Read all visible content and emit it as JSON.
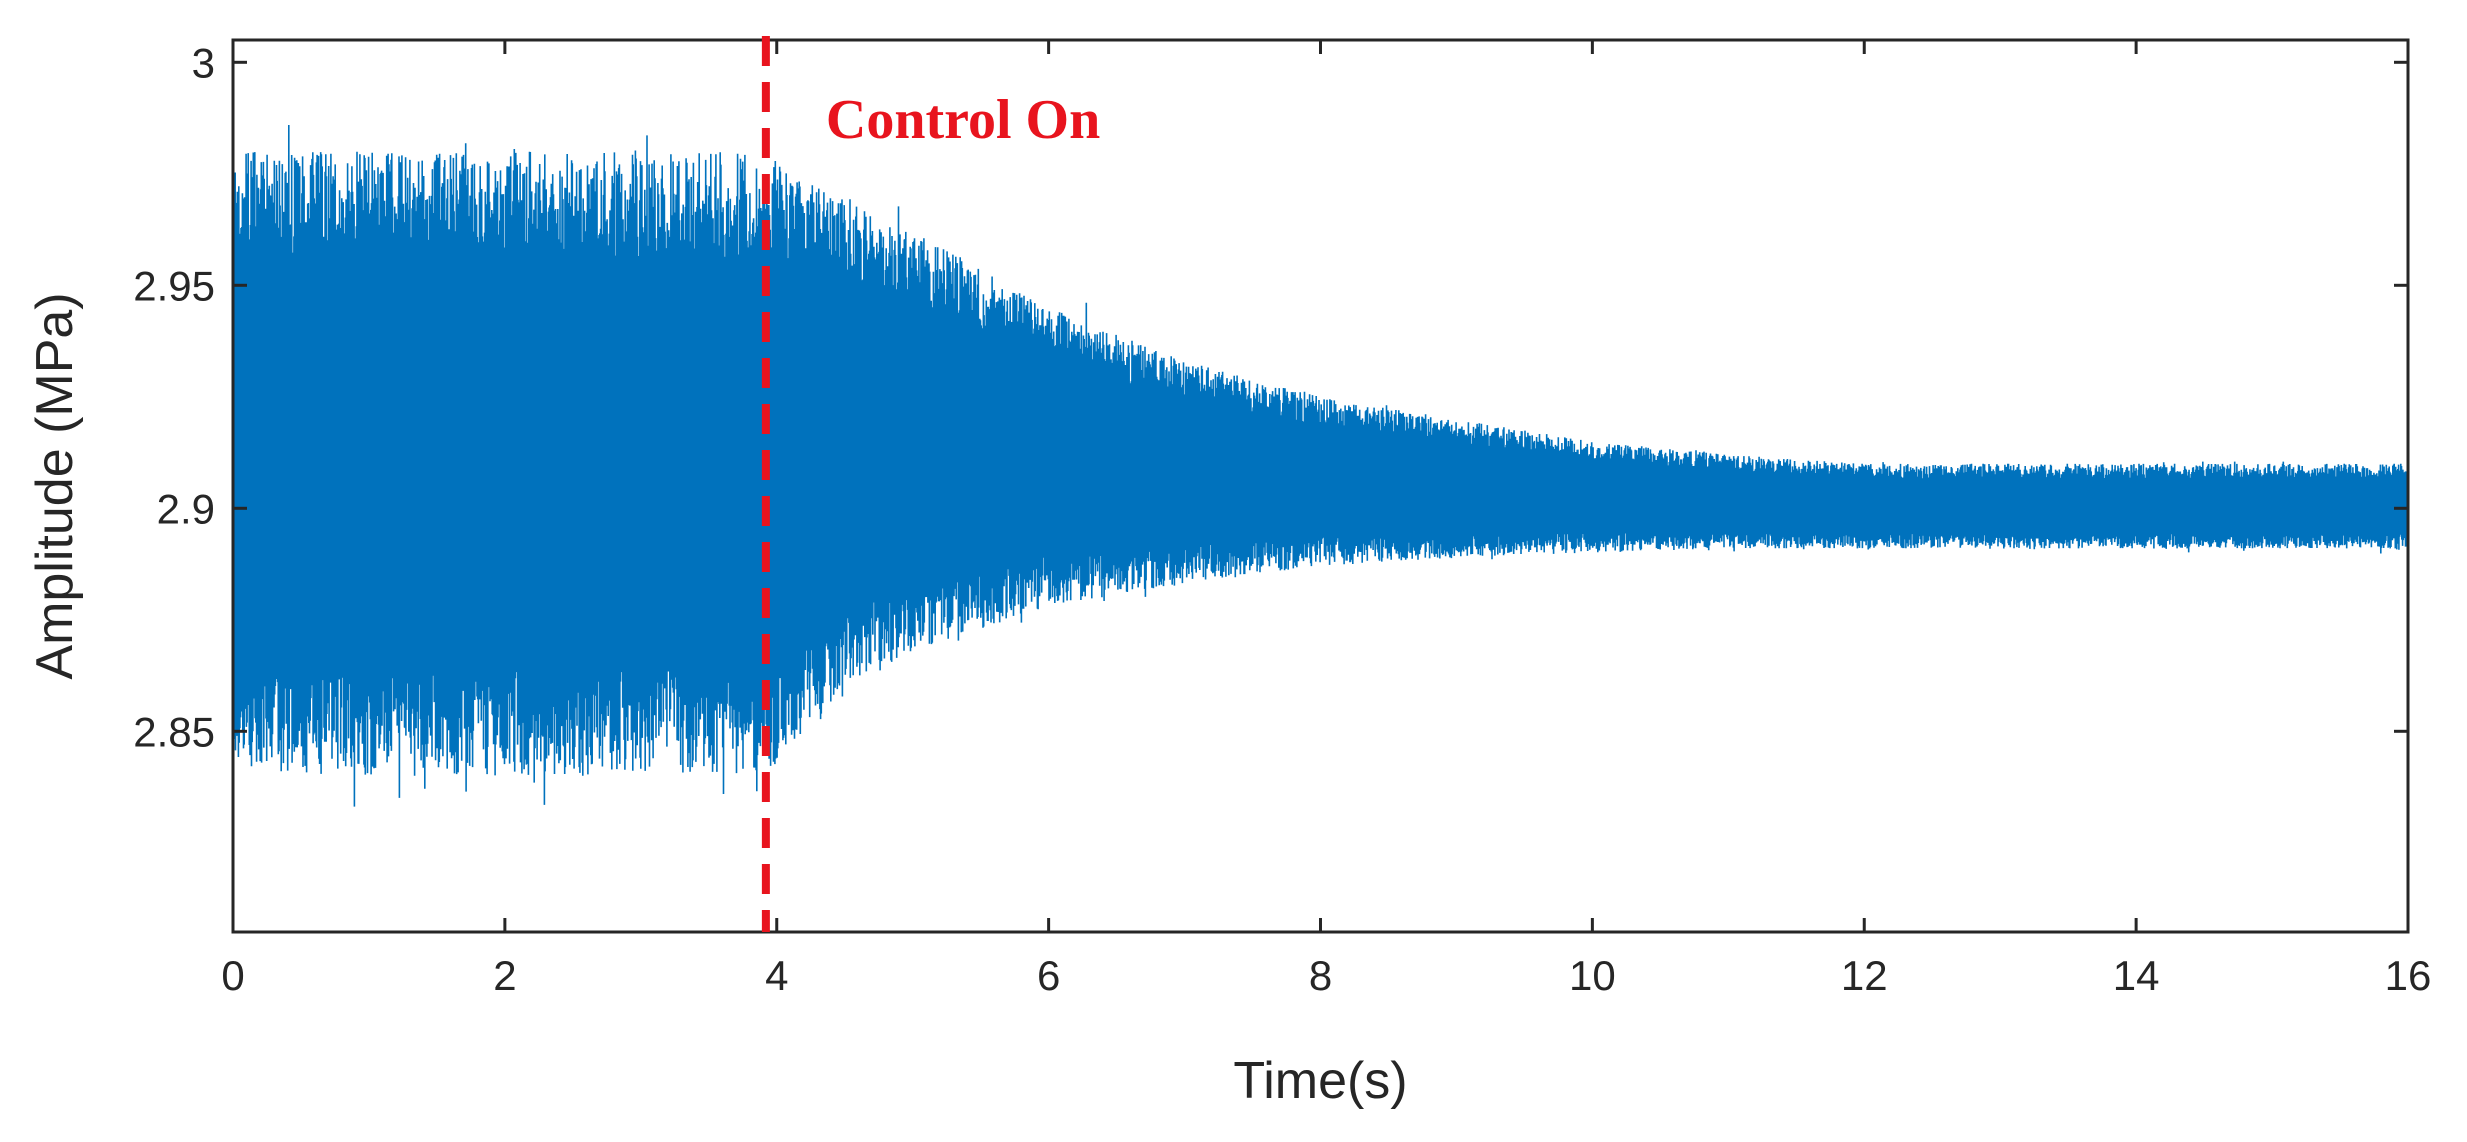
{
  "chart_data": {
    "type": "line",
    "xlabel": "Time(s)",
    "ylabel": "Amplitude (MPa)",
    "xlim": [
      0,
      16
    ],
    "ylim": [
      2.805,
      3.005
    ],
    "xticks": [
      "0",
      "2",
      "4",
      "6",
      "8",
      "10",
      "12",
      "14",
      "16"
    ],
    "yticks": [
      "2.85",
      "2.9",
      "2.95",
      "3"
    ],
    "grid": false,
    "legend": "none",
    "series": [
      {
        "color": "#0072BD",
        "description_envelope": {
          "x": [
            0,
            3.9,
            4.5,
            5,
            6,
            7,
            8,
            9,
            10,
            11,
            12,
            14,
            16
          ],
          "upper": [
            2.98,
            2.98,
            2.97,
            2.962,
            2.945,
            2.933,
            2.925,
            2.92,
            2.915,
            2.912,
            2.91,
            2.91,
            2.91
          ],
          "lower": [
            2.84,
            2.84,
            2.858,
            2.868,
            2.878,
            2.883,
            2.887,
            2.889,
            2.89,
            2.891,
            2.891,
            2.891,
            2.891
          ],
          "center": 2.9
        }
      }
    ],
    "annotation": {
      "text": "Control On",
      "x_line": 3.92,
      "line_color": "#E8141E",
      "text_color": "#E8141E"
    }
  }
}
